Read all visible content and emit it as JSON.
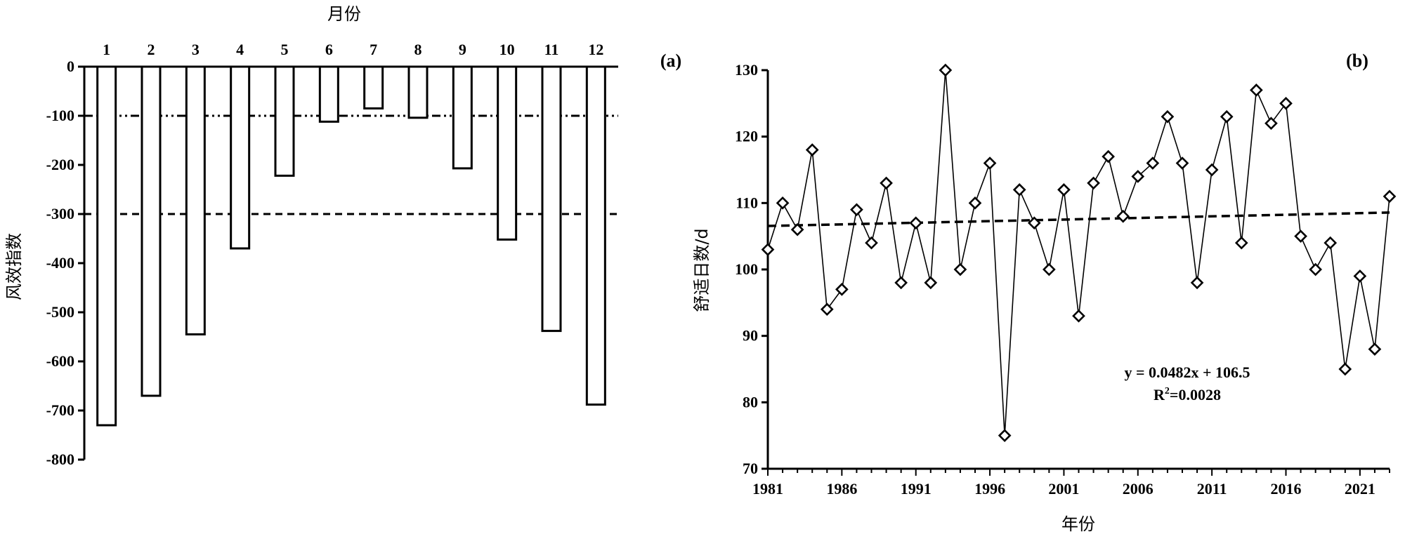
{
  "chart_data": [
    {
      "type": "bar",
      "panel_label": "(a)",
      "xlabel": "月份",
      "ylabel": "风效指数",
      "categories": [
        "1",
        "2",
        "3",
        "4",
        "5",
        "6",
        "7",
        "8",
        "9",
        "10",
        "11",
        "12"
      ],
      "values": [
        -730,
        -670,
        -545,
        -370,
        -222,
        -112,
        -85,
        -104,
        -207,
        -352,
        -538,
        -688
      ],
      "ylim": [
        -800,
        0
      ],
      "yticks": [
        "0",
        "-100",
        "-200",
        "-300",
        "-400",
        "-500",
        "-600",
        "-700",
        "-800"
      ],
      "xaxis_position": "top",
      "reference_lines": [
        {
          "y": -100,
          "style": "dash-dot-dot"
        },
        {
          "y": -300,
          "style": "dashed"
        }
      ]
    },
    {
      "type": "line",
      "panel_label": "(b)",
      "xlabel": "年份",
      "ylabel": "舒适日数/d",
      "x": [
        1981,
        1982,
        1983,
        1984,
        1985,
        1986,
        1987,
        1988,
        1989,
        1990,
        1991,
        1992,
        1993,
        1994,
        1995,
        1996,
        1997,
        1998,
        1999,
        2000,
        2001,
        2002,
        2003,
        2004,
        2005,
        2006,
        2007,
        2008,
        2009,
        2010,
        2011,
        2012,
        2013,
        2014,
        2015,
        2016,
        2017,
        2018,
        2019,
        2020,
        2021,
        2022,
        2023
      ],
      "series": [
        {
          "values": [
            103,
            110,
            106,
            118,
            94,
            97,
            109,
            104,
            113,
            98,
            107,
            98,
            130,
            100,
            110,
            116,
            75,
            112,
            107,
            100,
            112,
            93,
            113,
            117,
            108,
            114,
            116,
            123,
            116,
            98,
            115,
            123,
            104,
            127,
            122,
            125,
            105,
            100,
            104,
            85,
            99,
            88,
            111
          ],
          "marker": "diamond"
        }
      ],
      "trendline": {
        "slope": 0.0482,
        "intercept": 106.5,
        "style": "dashed"
      },
      "equation": "y = 0.0482x + 106.5",
      "r2_prefix": "R",
      "r2_sup": "2",
      "r2_suffix": "=0.0028",
      "xticks": [
        "1981",
        "1986",
        "1991",
        "1996",
        "2001",
        "2006",
        "2011",
        "2016",
        "2021"
      ],
      "yticks": [
        "70",
        "80",
        "90",
        "100",
        "110",
        "120",
        "130"
      ],
      "ylim": [
        70,
        130
      ],
      "xlim": [
        1981,
        2023
      ]
    }
  ]
}
